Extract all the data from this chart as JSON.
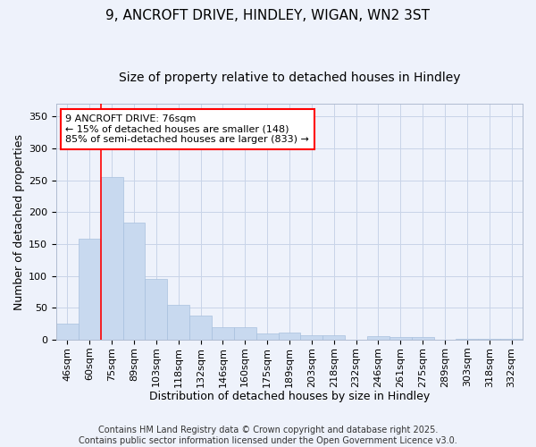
{
  "title": "9, ANCROFT DRIVE, HINDLEY, WIGAN, WN2 3ST",
  "subtitle": "Size of property relative to detached houses in Hindley",
  "xlabel": "Distribution of detached houses by size in Hindley",
  "ylabel": "Number of detached properties",
  "categories": [
    "46sqm",
    "60sqm",
    "75sqm",
    "89sqm",
    "103sqm",
    "118sqm",
    "132sqm",
    "146sqm",
    "160sqm",
    "175sqm",
    "189sqm",
    "203sqm",
    "218sqm",
    "232sqm",
    "246sqm",
    "261sqm",
    "275sqm",
    "289sqm",
    "303sqm",
    "318sqm",
    "332sqm"
  ],
  "values": [
    25,
    158,
    255,
    184,
    95,
    55,
    38,
    20,
    20,
    10,
    12,
    7,
    7,
    0,
    6,
    5,
    5,
    0,
    2,
    2,
    2
  ],
  "bar_color": "#c8d9ef",
  "bar_edge_color": "#a8c0de",
  "ylim": [
    0,
    370
  ],
  "yticks": [
    0,
    50,
    100,
    150,
    200,
    250,
    300,
    350
  ],
  "marker_index": 2,
  "annotation_line1": "9 ANCROFT DRIVE: 76sqm",
  "annotation_line2": "← 15% of detached houses are smaller (148)",
  "annotation_line3": "85% of semi-detached houses are larger (833) →",
  "annotation_box_color": "white",
  "annotation_box_edge_color": "red",
  "marker_line_color": "red",
  "grid_color": "#c8d4e8",
  "background_color": "#eef2fb",
  "footer_text": "Contains HM Land Registry data © Crown copyright and database right 2025.\nContains public sector information licensed under the Open Government Licence v3.0.",
  "title_fontsize": 11,
  "subtitle_fontsize": 10,
  "xlabel_fontsize": 9,
  "ylabel_fontsize": 9,
  "tick_fontsize": 8,
  "footer_fontsize": 7,
  "annotation_fontsize": 8
}
